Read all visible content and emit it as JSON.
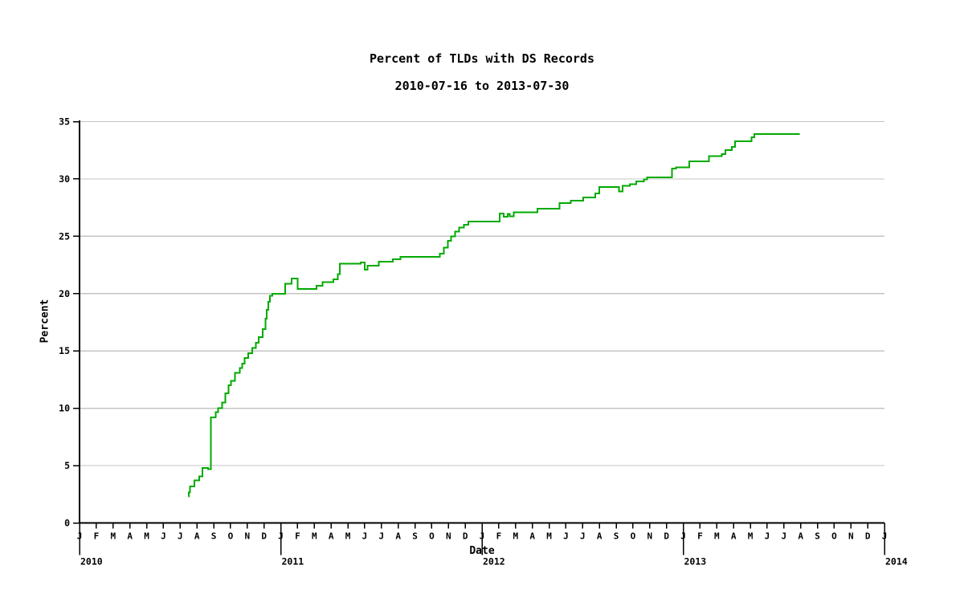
{
  "chart_data": {
    "type": "line",
    "step": "after",
    "title": "Percent of TLDs with DS Records",
    "subtitle": "2010-07-16 to 2013-07-30",
    "xlabel": "Date",
    "ylabel": "Percent",
    "ylim": [
      0,
      35
    ],
    "y_ticks": [
      0,
      5,
      10,
      15,
      20,
      25,
      30,
      35
    ],
    "x_range_months": 48,
    "month_labels": [
      "J",
      "F",
      "M",
      "A",
      "M",
      "J",
      "J",
      "A",
      "S",
      "O",
      "N",
      "D"
    ],
    "years": [
      {
        "label": "2010",
        "month": 0
      },
      {
        "label": "2011",
        "month": 12
      },
      {
        "label": "2012",
        "month": 24
      },
      {
        "label": "2013",
        "month": 36
      },
      {
        "label": "2014",
        "month": 48
      }
    ],
    "grid": true,
    "legend": "none",
    "line_color": "#00aa00",
    "grid_color": "#c4c4c4",
    "axis_color": "#000000",
    "series": [
      {
        "name": "Percent of TLDs with DS Records",
        "points": [
          [
            "2010-07-16",
            2.3
          ],
          [
            "2010-07-17",
            2.65
          ],
          [
            "2010-07-19",
            3.2
          ],
          [
            "2010-07-27",
            3.7
          ],
          [
            "2010-08-05",
            4.05
          ],
          [
            "2010-08-11",
            4.8
          ],
          [
            "2010-08-21",
            4.7
          ],
          [
            "2010-08-26",
            9.2
          ],
          [
            "2010-09-05",
            9.65
          ],
          [
            "2010-09-09",
            10.0
          ],
          [
            "2010-09-16",
            10.5
          ],
          [
            "2010-09-22",
            11.3
          ],
          [
            "2010-09-28",
            12.0
          ],
          [
            "2010-10-02",
            12.4
          ],
          [
            "2010-10-09",
            13.1
          ],
          [
            "2010-10-18",
            13.5
          ],
          [
            "2010-10-22",
            13.9
          ],
          [
            "2010-10-27",
            14.4
          ],
          [
            "2010-11-03",
            14.8
          ],
          [
            "2010-11-10",
            15.25
          ],
          [
            "2010-11-17",
            15.7
          ],
          [
            "2010-11-22",
            16.2
          ],
          [
            "2010-11-29",
            16.9
          ],
          [
            "2010-12-04",
            17.8
          ],
          [
            "2010-12-06",
            18.6
          ],
          [
            "2010-12-09",
            19.3
          ],
          [
            "2010-12-12",
            19.8
          ],
          [
            "2010-12-16",
            20.0
          ],
          [
            "2011-01-09",
            20.85
          ],
          [
            "2011-01-21",
            21.3
          ],
          [
            "2011-02-01",
            20.4
          ],
          [
            "2011-03-05",
            20.7
          ],
          [
            "2011-03-16",
            21.0
          ],
          [
            "2011-04-05",
            21.25
          ],
          [
            "2011-04-13",
            21.7
          ],
          [
            "2011-04-17",
            22.6
          ],
          [
            "2011-05-24",
            22.7
          ],
          [
            "2011-06-01",
            22.1
          ],
          [
            "2011-06-06",
            22.45
          ],
          [
            "2011-06-27",
            22.8
          ],
          [
            "2011-07-22",
            23.0
          ],
          [
            "2011-08-05",
            23.2
          ],
          [
            "2011-10-16",
            23.5
          ],
          [
            "2011-10-23",
            24.0
          ],
          [
            "2011-10-30",
            24.6
          ],
          [
            "2011-11-06",
            25.0
          ],
          [
            "2011-11-13",
            25.4
          ],
          [
            "2011-11-20",
            25.75
          ],
          [
            "2011-11-29",
            26.0
          ],
          [
            "2011-12-07",
            26.3
          ],
          [
            "2012-02-03",
            27.0
          ],
          [
            "2012-02-10",
            26.7
          ],
          [
            "2012-02-17",
            26.95
          ],
          [
            "2012-02-21",
            26.75
          ],
          [
            "2012-02-28",
            27.1
          ],
          [
            "2012-04-10",
            27.4
          ],
          [
            "2012-05-20",
            27.9
          ],
          [
            "2012-06-10",
            28.1
          ],
          [
            "2012-07-02",
            28.4
          ],
          [
            "2012-07-24",
            28.75
          ],
          [
            "2012-07-31",
            29.3
          ],
          [
            "2012-09-06",
            28.9
          ],
          [
            "2012-09-13",
            29.4
          ],
          [
            "2012-09-26",
            29.55
          ],
          [
            "2012-10-07",
            29.8
          ],
          [
            "2012-10-21",
            29.95
          ],
          [
            "2012-10-27",
            30.15
          ],
          [
            "2012-12-11",
            30.9
          ],
          [
            "2012-12-18",
            31.0
          ],
          [
            "2013-01-12",
            31.55
          ],
          [
            "2013-02-17",
            32.0
          ],
          [
            "2013-03-10",
            32.15
          ],
          [
            "2013-03-17",
            32.5
          ],
          [
            "2013-03-28",
            32.8
          ],
          [
            "2013-04-04",
            33.3
          ],
          [
            "2013-05-03",
            33.65
          ],
          [
            "2013-05-08",
            33.9
          ],
          [
            "2013-07-30",
            33.9
          ]
        ]
      }
    ]
  }
}
